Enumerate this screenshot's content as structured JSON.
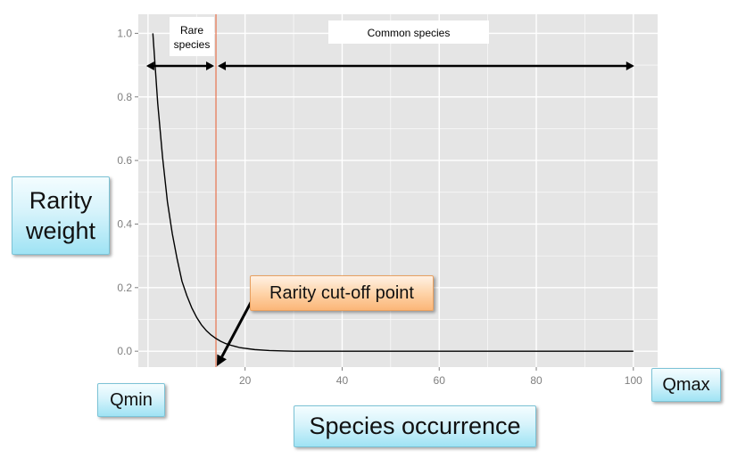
{
  "chart_data": {
    "type": "line",
    "x_ticks": [
      20,
      40,
      60,
      80,
      100
    ],
    "y_ticks": [
      "0.0",
      "0.2",
      "0.4",
      "0.6",
      "0.8",
      "1.0"
    ],
    "xlim": [
      -2,
      105
    ],
    "ylim": [
      -0.05,
      1.06
    ],
    "grid": true,
    "series": [
      {
        "x": [
          1,
          2,
          3,
          4,
          5,
          6,
          7,
          8,
          9,
          10,
          11,
          12,
          13,
          14,
          15,
          16,
          17,
          18,
          19,
          20,
          22,
          25,
          30,
          40,
          60,
          80,
          100
        ],
        "y": [
          1.0,
          0.78,
          0.61,
          0.47,
          0.37,
          0.29,
          0.22,
          0.175,
          0.137,
          0.107,
          0.083,
          0.065,
          0.051,
          0.04,
          0.031,
          0.024,
          0.019,
          0.015,
          0.011,
          0.009,
          0.005,
          0.002,
          0.0,
          0.0,
          0.0,
          0.0,
          0.0
        ]
      }
    ],
    "cutoff_x": 14,
    "xmin": 0,
    "xmax": 100
  },
  "plot": {
    "background": "#e5e5e5",
    "grid_color": "#ffffff",
    "curve_color": "#000000",
    "cutoff_line_color": "#e8734f",
    "rare_label_lines": [
      "Rare",
      "species"
    ],
    "common_label": "Common species"
  },
  "annotations": {
    "y_axis_label": "Rarity weight",
    "x_axis_label": "Species occurrence",
    "qmin": "Qmin",
    "qmax": "Qmax",
    "cutoff": "Rarity cut-off point",
    "callout_color": "#bdeefa",
    "cutoff_box_color": "#fcc08a"
  }
}
